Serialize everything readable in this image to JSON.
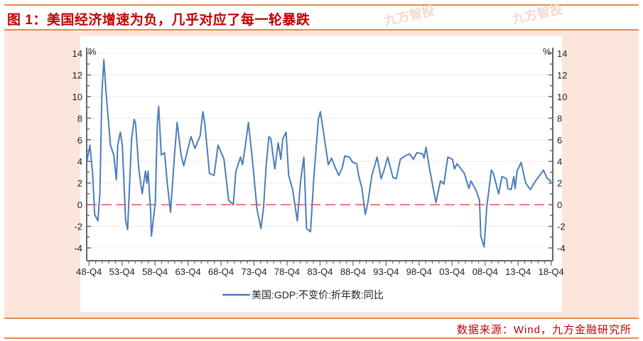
{
  "title": "图 1：美国经济增速为负，几乎对应了每一轮暴跌",
  "watermark": "九方智投",
  "source": "数据来源：Wind，九方金融研究所",
  "colors": {
    "accent": "#e8884a",
    "title": "#c00000",
    "line": "#4a7ebb",
    "zero_line": "#e03030",
    "band": "#fce6dc"
  },
  "chart_data": {
    "type": "line",
    "title": "",
    "xlabel": "",
    "ylabel_left": "%",
    "ylabel_right": "%",
    "ylim": [
      -4,
      14
    ],
    "xlim": [
      1948.4,
      2019.0
    ],
    "yticks": [
      -4,
      -2,
      0,
      2,
      4,
      6,
      8,
      10,
      12,
      14
    ],
    "xticks": [
      1948.75,
      1953.75,
      1958.75,
      1963.75,
      1968.75,
      1973.75,
      1978.75,
      1983.75,
      1988.75,
      1993.75,
      1998.75,
      2003.75,
      2008.75,
      2013.75,
      2018.75
    ],
    "xtick_labels": [
      "48-Q4",
      "53-Q4",
      "58-Q4",
      "63-Q4",
      "68-Q4",
      "73-Q4",
      "78-Q4",
      "83-Q4",
      "88-Q4",
      "93-Q4",
      "98-Q4",
      "03-Q4",
      "08-Q4",
      "13-Q4",
      "18-Q4"
    ],
    "grid": true,
    "legend": {
      "position": "bottom",
      "entries": [
        "美国:GDP:不变价:折年数:同比"
      ]
    },
    "reference_line": {
      "y": 0,
      "style": "dashed"
    },
    "series": [
      {
        "name": "美国:GDP:不变价:折年数:同比",
        "x": [
          1948.4,
          1948.9,
          1949.3,
          1949.6,
          1950.1,
          1950.4,
          1950.7,
          1951.0,
          1951.3,
          1952.0,
          1952.5,
          1952.9,
          1953.1,
          1953.5,
          1953.8,
          1954.3,
          1954.6,
          1955.2,
          1955.6,
          1955.8,
          1956.3,
          1956.8,
          1957.3,
          1957.5,
          1957.7,
          1958.1,
          1958.2,
          1958.8,
          1959.1,
          1959.3,
          1959.7,
          1960.2,
          1960.6,
          1961.1,
          1961.7,
          1962.1,
          1962.7,
          1963.1,
          1964.2,
          1964.8,
          1965.6,
          1966.0,
          1966.3,
          1967.0,
          1967.7,
          1968.3,
          1969.2,
          1969.9,
          1970.6,
          1971.0,
          1971.7,
          1972.0,
          1972.4,
          1972.9,
          1973.5,
          1974.2,
          1974.8,
          1975.2,
          1975.6,
          1976.0,
          1976.3,
          1976.9,
          1977.4,
          1977.8,
          1978.1,
          1978.6,
          1979.0,
          1979.6,
          1980.3,
          1980.8,
          1981.3,
          1981.7,
          1982.3,
          1982.8,
          1983.5,
          1983.8,
          1984.2,
          1985.0,
          1985.5,
          1986.0,
          1986.6,
          1987.1,
          1987.5,
          1988.2,
          1988.7,
          1989.3,
          1989.6,
          1990.1,
          1990.6,
          1991.0,
          1991.6,
          1992.4,
          1993.0,
          1993.4,
          1994.0,
          1994.8,
          1995.3,
          1995.9,
          1996.6,
          1997.3,
          1997.9,
          1998.4,
          1999.3,
          1999.5,
          1999.8,
          2000.4,
          2001.3,
          2002.0,
          2002.5,
          2003.1,
          2003.8,
          2004.1,
          2004.5,
          2005.6,
          2006.3,
          2006.6,
          2007.4,
          2007.9,
          2008.1,
          2008.6,
          2009.0,
          2009.7,
          2010.0,
          2010.8,
          2011.3,
          2012.0,
          2012.2,
          2012.7,
          2013.1,
          2013.3,
          2013.6,
          2014.2,
          2014.9,
          2015.6,
          2016.3,
          2017.6,
          2018.1,
          2018.8
        ],
        "y": [
          3.9,
          5.5,
          2.9,
          -0.9,
          -1.5,
          1.1,
          10.3,
          13.4,
          10.7,
          5.5,
          4.6,
          2.3,
          5.5,
          6.7,
          5.5,
          -1.5,
          -2.3,
          6.1,
          7.9,
          7.5,
          3.3,
          1.0,
          3.1,
          2.0,
          3.1,
          -0.7,
          -2.9,
          0.2,
          7.5,
          9.1,
          4.6,
          4.8,
          2.0,
          -0.7,
          4.6,
          7.6,
          4.6,
          3.6,
          6.3,
          5.2,
          6.4,
          8.6,
          7.5,
          2.9,
          2.7,
          5.5,
          4.2,
          0.4,
          0.0,
          3.1,
          4.4,
          3.7,
          5.3,
          7.6,
          4.2,
          -0.4,
          -2.2,
          -0.2,
          3.7,
          6.3,
          6.1,
          3.3,
          5.7,
          4.2,
          6.1,
          6.7,
          2.7,
          1.4,
          -1.5,
          2.2,
          4.4,
          -2.2,
          -2.5,
          2.4,
          7.9,
          8.6,
          7.0,
          3.7,
          4.3,
          3.5,
          2.7,
          3.4,
          4.5,
          4.4,
          3.9,
          3.8,
          2.7,
          1.5,
          -0.9,
          0.2,
          2.7,
          4.4,
          2.4,
          3.1,
          4.4,
          2.5,
          2.4,
          4.2,
          4.5,
          4.7,
          4.2,
          4.8,
          4.7,
          4.3,
          5.3,
          3.1,
          0.2,
          2.2,
          1.9,
          4.4,
          4.2,
          3.3,
          3.8,
          2.9,
          1.5,
          2.2,
          1.3,
          0.4,
          -2.9,
          -3.9,
          -0.2,
          3.2,
          2.9,
          1.0,
          2.6,
          2.4,
          1.5,
          1.4,
          2.6,
          1.5,
          3.1,
          3.9,
          2.0,
          1.4,
          2.1,
          3.2,
          2.5,
          2.1
        ]
      }
    ]
  }
}
